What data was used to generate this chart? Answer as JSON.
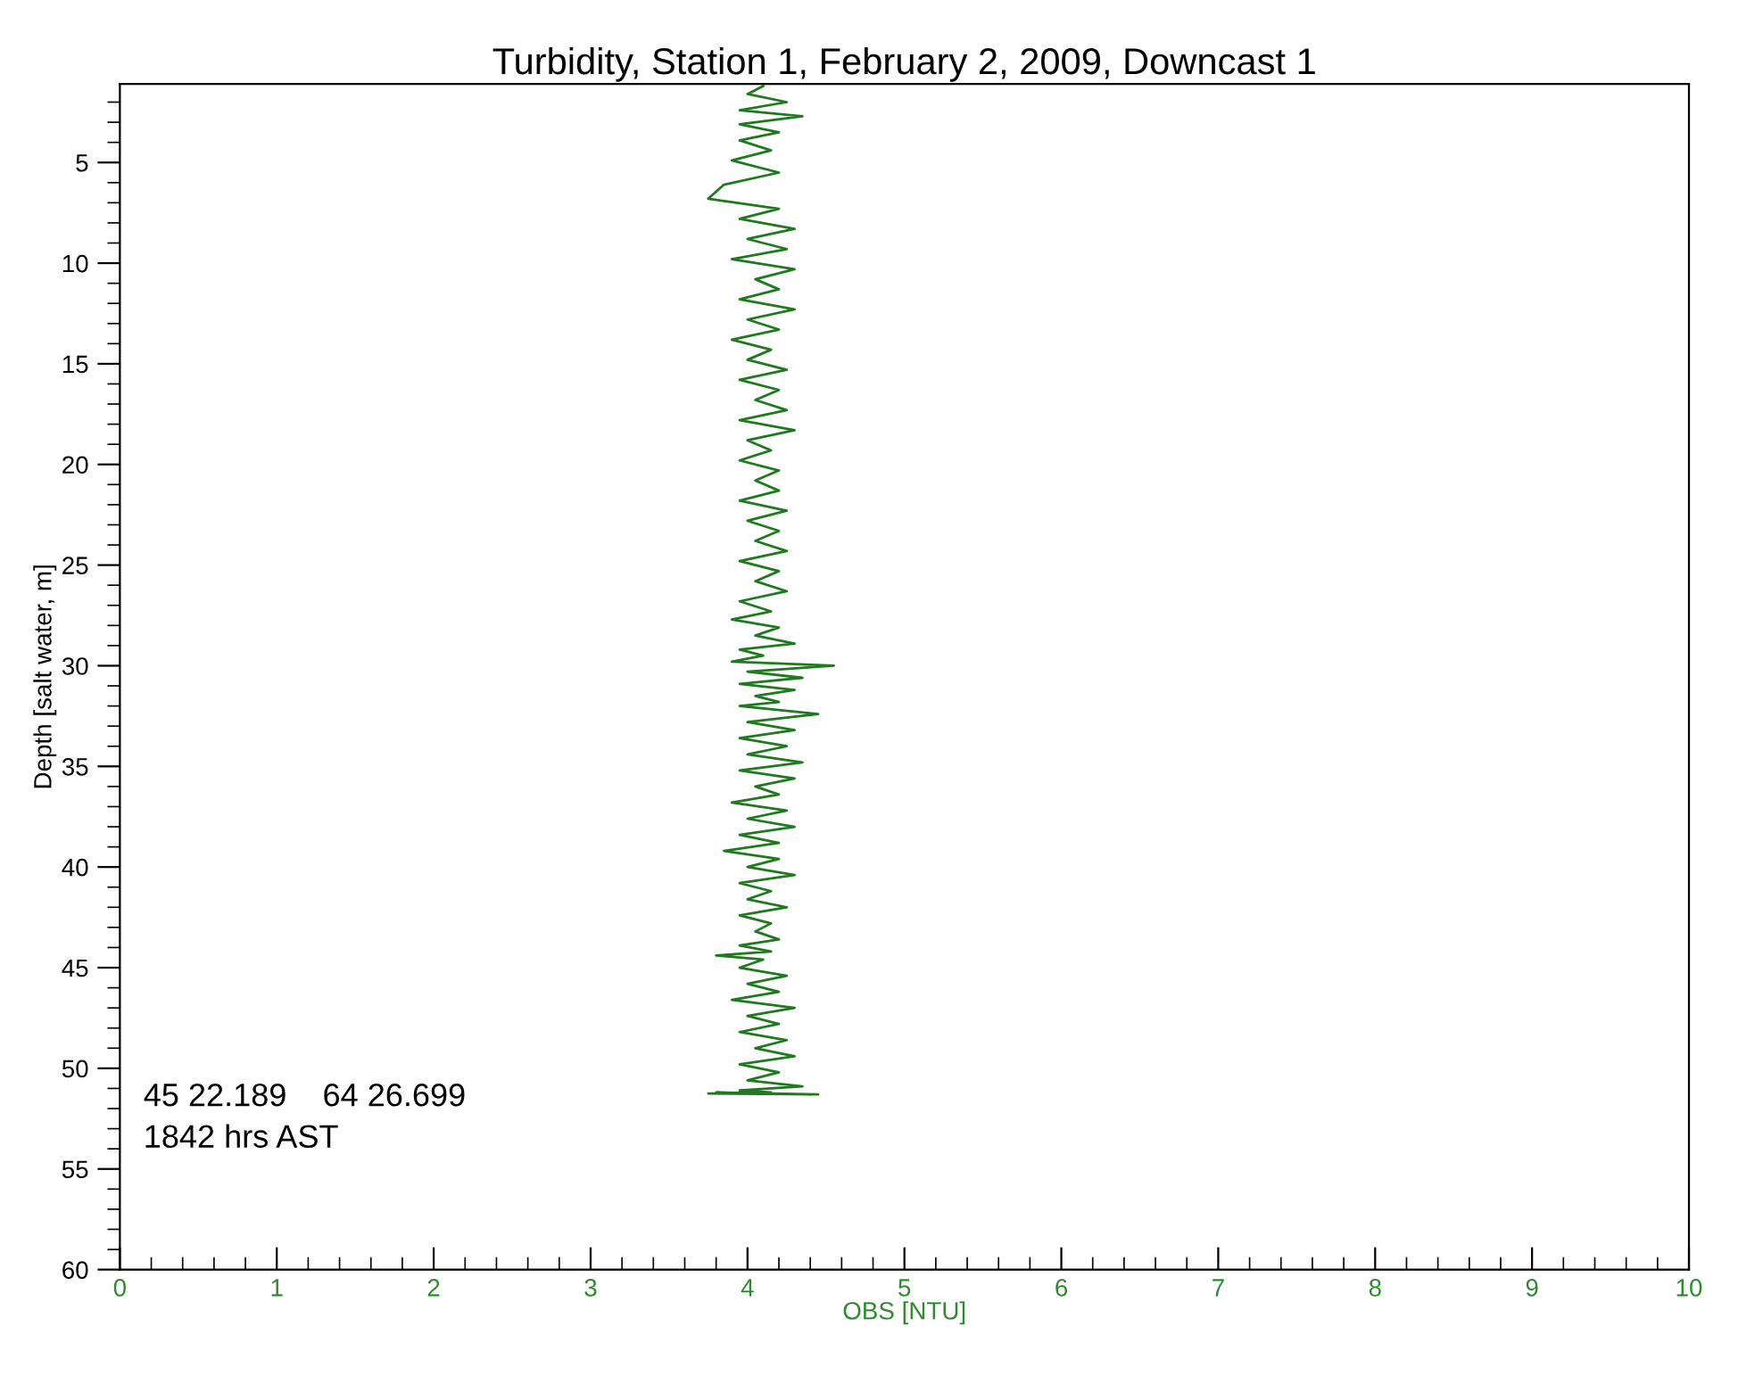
{
  "chart_data": {
    "type": "line",
    "orientation": "horizontal",
    "title": "Turbidity, Station 1, February 2, 2009, Downcast 1",
    "xlabel": "OBS [NTU]",
    "ylabel": "Depth [salt water, m]",
    "xlim": [
      0,
      10
    ],
    "xticks": [
      0,
      1,
      2,
      3,
      4,
      5,
      6,
      7,
      8,
      9,
      10
    ],
    "ylim": [
      60,
      1.1
    ],
    "yticks": [
      5,
      10,
      15,
      20,
      25,
      30,
      35,
      40,
      45,
      50,
      55,
      60
    ],
    "grid": false,
    "marker": "none",
    "line_style": "solid",
    "annotations": [
      "45 22.189    64 26.699",
      "1842 hrs AST"
    ],
    "series": [
      {
        "color": "#1f7a1f",
        "values": [
          4.1,
          4.0,
          4.25,
          3.95,
          4.35,
          3.95,
          4.2,
          3.95,
          4.15,
          3.9,
          4.2,
          3.85,
          3.75,
          4.2,
          3.95,
          4.3,
          4.0,
          4.25,
          3.9,
          4.3,
          4.05,
          4.2,
          3.95,
          4.3,
          4.0,
          4.2,
          3.9,
          4.15,
          4.0,
          4.25,
          3.95,
          4.2,
          4.05,
          4.25,
          3.95,
          4.3,
          4.0,
          4.15,
          3.95,
          4.2,
          4.05,
          4.2,
          3.95,
          4.25,
          4.0,
          4.2,
          4.05,
          4.25,
          3.95,
          4.2,
          4.05,
          4.25,
          3.95,
          4.15,
          3.9,
          4.2,
          4.05,
          4.3,
          3.95,
          4.1,
          3.9,
          4.55,
          4.0,
          4.35,
          3.95,
          4.3,
          4.05,
          4.2,
          3.95,
          4.45,
          4.0,
          4.3,
          3.95,
          4.25,
          4.0,
          4.35,
          3.95,
          4.3,
          4.05,
          4.2,
          3.9,
          4.25,
          4.0,
          4.3,
          3.95,
          4.2,
          3.85,
          4.2,
          4.0,
          4.3,
          3.95,
          4.15,
          4.0,
          4.25,
          3.95,
          4.15,
          4.05,
          4.2,
          3.95,
          4.15,
          3.8,
          4.1,
          3.95,
          4.25,
          4.0,
          4.2,
          3.9,
          4.3,
          4.0,
          4.2,
          3.95,
          4.25,
          4.05,
          4.3,
          3.95,
          4.2,
          4.0,
          4.35,
          3.95,
          4.15,
          3.75,
          4.45,
          3.8,
          4.4
        ],
        "x": [
          1.2,
          1.6,
          2.0,
          2.4,
          2.7,
          3.1,
          3.5,
          3.9,
          4.4,
          4.9,
          5.5,
          6.1,
          6.8,
          7.3,
          7.8,
          8.3,
          8.8,
          9.3,
          9.8,
          10.3,
          10.8,
          11.3,
          11.8,
          12.3,
          12.8,
          13.3,
          13.8,
          14.3,
          14.8,
          15.3,
          15.8,
          16.3,
          16.8,
          17.3,
          17.8,
          18.3,
          18.8,
          19.3,
          19.8,
          20.3,
          20.8,
          21.3,
          21.8,
          22.3,
          22.8,
          23.3,
          23.8,
          24.3,
          24.8,
          25.3,
          25.8,
          26.3,
          26.8,
          27.3,
          27.7,
          28.1,
          28.5,
          28.9,
          29.2,
          29.5,
          29.8,
          30.0,
          30.3,
          30.6,
          30.9,
          31.2,
          31.5,
          31.8,
          32.0,
          32.4,
          32.8,
          33.2,
          33.6,
          34.0,
          34.4,
          34.8,
          35.2,
          35.6,
          36.0,
          36.4,
          36.8,
          37.2,
          37.6,
          38.0,
          38.4,
          38.8,
          39.2,
          39.6,
          40.0,
          40.4,
          40.8,
          41.2,
          41.6,
          42.0,
          42.4,
          42.8,
          43.2,
          43.6,
          43.9,
          44.2,
          44.4,
          44.6,
          45.0,
          45.4,
          45.8,
          46.2,
          46.6,
          47.0,
          47.4,
          47.8,
          48.2,
          48.6,
          49.0,
          49.4,
          49.8,
          50.2,
          50.6,
          50.9,
          51.1,
          51.2,
          51.25,
          51.3,
          51.2,
          51.3
        ]
      }
    ]
  }
}
